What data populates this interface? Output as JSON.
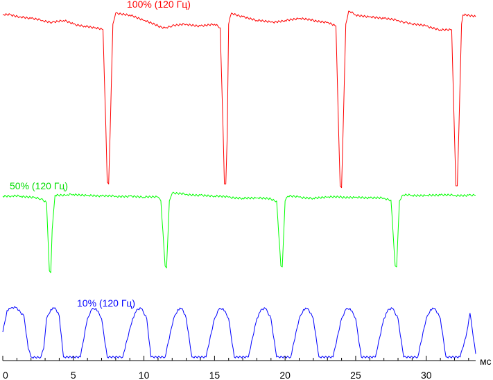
{
  "chart_data": {
    "type": "line",
    "title": "",
    "xlabel": "",
    "ylabel": "",
    "x_unit": "мс",
    "xlim": [
      0,
      33.5
    ],
    "x_ticks": [
      0,
      5,
      10,
      15,
      20,
      25,
      30
    ],
    "grid": false,
    "legend": "none",
    "series": [
      {
        "name": "100% (120 Гц)",
        "color": "#ff0000",
        "points": [
          [
            0,
            5
          ],
          [
            0.6,
            5
          ],
          [
            1.2,
            6
          ],
          [
            2,
            7
          ],
          [
            2.8,
            8
          ],
          [
            3.5,
            9
          ],
          [
            4.3,
            8
          ],
          [
            5,
            10
          ],
          [
            5.8,
            11
          ],
          [
            6.5,
            12
          ],
          [
            7.1,
            13
          ],
          [
            7.3,
            65
          ],
          [
            7.4,
            95
          ],
          [
            7.5,
            96
          ],
          [
            7.6,
            70
          ],
          [
            7.8,
            10
          ],
          [
            8,
            4
          ],
          [
            9,
            5
          ],
          [
            10,
            8
          ],
          [
            11,
            11
          ],
          [
            11.5,
            12
          ],
          [
            12,
            11
          ],
          [
            13,
            10
          ],
          [
            14,
            11
          ],
          [
            15,
            10
          ],
          [
            15.4,
            12
          ],
          [
            15.6,
            65
          ],
          [
            15.7,
            96
          ],
          [
            15.8,
            96
          ],
          [
            15.9,
            70
          ],
          [
            16,
            10
          ],
          [
            16.2,
            4
          ],
          [
            17,
            6
          ],
          [
            18,
            8
          ],
          [
            19,
            9
          ],
          [
            20,
            8
          ],
          [
            21,
            7
          ],
          [
            22,
            8
          ],
          [
            23,
            9
          ],
          [
            23.6,
            11
          ],
          [
            23.8,
            70
          ],
          [
            23.9,
            97
          ],
          [
            24,
            98
          ],
          [
            24.1,
            70
          ],
          [
            24.3,
            10
          ],
          [
            24.5,
            3
          ],
          [
            25,
            5
          ],
          [
            26,
            6
          ],
          [
            27,
            7
          ],
          [
            28,
            8
          ],
          [
            28.5,
            9
          ],
          [
            29,
            10
          ],
          [
            30,
            11
          ],
          [
            31,
            13
          ],
          [
            31.8,
            13
          ],
          [
            32,
            70
          ],
          [
            32.1,
            97
          ],
          [
            32.2,
            97
          ],
          [
            32.3,
            70
          ],
          [
            32.5,
            10
          ],
          [
            32.6,
            5
          ],
          [
            33.5,
            6
          ]
        ]
      },
      {
        "name": "50% (120 Гц)",
        "color": "#00ff00",
        "points": [
          [
            0,
            5
          ],
          [
            0.6,
            5
          ],
          [
            1.3,
            5
          ],
          [
            2.2,
            6
          ],
          [
            2.7,
            8
          ],
          [
            3.1,
            12
          ],
          [
            3.3,
            83
          ],
          [
            3.4,
            85
          ],
          [
            3.5,
            40
          ],
          [
            3.7,
            4
          ],
          [
            4.5,
            4
          ],
          [
            5,
            3
          ],
          [
            6,
            4
          ],
          [
            7,
            5
          ],
          [
            8,
            5
          ],
          [
            9,
            5
          ],
          [
            10,
            6
          ],
          [
            11,
            6
          ],
          [
            11.2,
            10
          ],
          [
            11.5,
            78
          ],
          [
            11.6,
            80
          ],
          [
            11.8,
            10
          ],
          [
            12,
            2
          ],
          [
            13,
            3
          ],
          [
            14,
            4
          ],
          [
            15,
            5
          ],
          [
            16,
            6
          ],
          [
            17,
            7
          ],
          [
            18,
            7
          ],
          [
            19,
            8
          ],
          [
            19.4,
            10
          ],
          [
            19.7,
            78
          ],
          [
            19.8,
            79
          ],
          [
            20,
            10
          ],
          [
            20.2,
            5
          ],
          [
            21,
            6
          ],
          [
            22,
            7
          ],
          [
            23,
            6
          ],
          [
            24,
            6
          ],
          [
            25,
            6
          ],
          [
            26,
            7
          ],
          [
            27,
            7
          ],
          [
            27.5,
            9
          ],
          [
            27.8,
            78
          ],
          [
            27.9,
            79
          ],
          [
            28.1,
            10
          ],
          [
            28.3,
            4
          ],
          [
            29,
            4
          ],
          [
            30,
            4
          ],
          [
            31,
            4
          ],
          [
            32,
            4
          ],
          [
            33,
            4
          ],
          [
            33.5,
            4
          ]
        ]
      },
      {
        "name": "10% (120 Гц)",
        "color": "#0000ff",
        "points": [
          [
            0,
            50
          ],
          [
            0.3,
            10
          ],
          [
            0.6,
            5
          ],
          [
            1,
            5
          ],
          [
            1.5,
            20
          ],
          [
            1.8,
            80
          ],
          [
            2,
            96
          ],
          [
            2.7,
            96
          ],
          [
            2.9,
            80
          ],
          [
            3.1,
            25
          ],
          [
            3.4,
            8
          ],
          [
            3.7,
            5
          ],
          [
            4,
            20
          ],
          [
            4.3,
            96
          ],
          [
            5.5,
            96
          ],
          [
            6,
            25
          ],
          [
            6.3,
            8
          ],
          [
            6.6,
            6
          ],
          [
            7,
            25
          ],
          [
            7.4,
            96
          ],
          [
            8.5,
            96
          ],
          [
            9.2,
            25
          ],
          [
            9.5,
            8
          ],
          [
            9.8,
            6
          ],
          [
            10.2,
            25
          ],
          [
            10.5,
            96
          ],
          [
            11.5,
            96
          ],
          [
            12.1,
            25
          ],
          [
            12.4,
            8
          ],
          [
            12.7,
            6
          ],
          [
            13,
            25
          ],
          [
            13.4,
            96
          ],
          [
            14.4,
            96
          ],
          [
            15,
            25
          ],
          [
            15.3,
            8
          ],
          [
            15.6,
            6
          ],
          [
            16,
            25
          ],
          [
            16.4,
            96
          ],
          [
            17.4,
            96
          ],
          [
            18,
            25
          ],
          [
            18.3,
            8
          ],
          [
            18.6,
            6
          ],
          [
            19,
            25
          ],
          [
            19.4,
            96
          ],
          [
            20.4,
            96
          ],
          [
            21,
            25
          ],
          [
            21.3,
            8
          ],
          [
            21.6,
            6
          ],
          [
            22,
            25
          ],
          [
            22.4,
            96
          ],
          [
            23.4,
            96
          ],
          [
            24,
            25
          ],
          [
            24.3,
            8
          ],
          [
            24.6,
            6
          ],
          [
            25,
            25
          ],
          [
            25.4,
            96
          ],
          [
            26.4,
            96
          ],
          [
            27,
            25
          ],
          [
            27.3,
            8
          ],
          [
            27.6,
            6
          ],
          [
            28,
            25
          ],
          [
            28.4,
            96
          ],
          [
            29.4,
            96
          ],
          [
            30,
            25
          ],
          [
            30.3,
            8
          ],
          [
            30.6,
            6
          ],
          [
            31,
            25
          ],
          [
            31.4,
            96
          ],
          [
            32.4,
            96
          ],
          [
            32.8,
            60
          ],
          [
            33.1,
            15
          ],
          [
            33.5,
            90
          ]
        ]
      }
    ]
  }
}
